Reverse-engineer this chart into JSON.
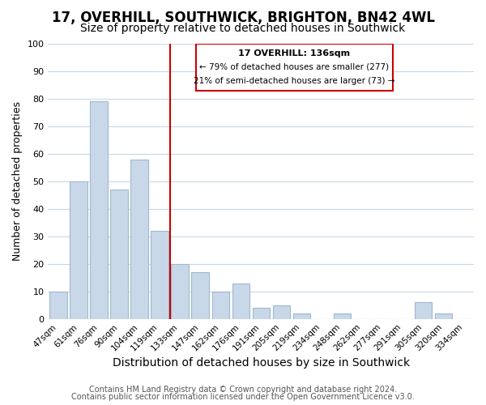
{
  "title": "17, OVERHILL, SOUTHWICK, BRIGHTON, BN42 4WL",
  "subtitle": "Size of property relative to detached houses in Southwick",
  "xlabel": "Distribution of detached houses by size in Southwick",
  "ylabel": "Number of detached properties",
  "categories": [
    "47sqm",
    "61sqm",
    "76sqm",
    "90sqm",
    "104sqm",
    "119sqm",
    "133sqm",
    "147sqm",
    "162sqm",
    "176sqm",
    "191sqm",
    "205sqm",
    "219sqm",
    "234sqm",
    "248sqm",
    "262sqm",
    "277sqm",
    "291sqm",
    "305sqm",
    "320sqm",
    "334sqm"
  ],
  "values": [
    10,
    50,
    79,
    47,
    58,
    32,
    20,
    17,
    10,
    13,
    4,
    5,
    2,
    0,
    2,
    0,
    0,
    0,
    6,
    2,
    0
  ],
  "bar_color": "#c8d8e8",
  "bar_edge_color": "#a0b8d0",
  "vline_color": "#cc0000",
  "vline_x_index": 6,
  "annotation_text_line1": "17 OVERHILL: 136sqm",
  "annotation_text_line2": "← 79% of detached houses are smaller (277)",
  "annotation_text_line3": "21% of semi-detached houses are larger (73) →",
  "annotation_box_color": "#cc0000",
  "annotation_fill": "#ffffff",
  "ylim": [
    0,
    100
  ],
  "yticks": [
    0,
    10,
    20,
    30,
    40,
    50,
    60,
    70,
    80,
    90,
    100
  ],
  "grid_color": "#c8d8e8",
  "background_color": "#ffffff",
  "footer_line1": "Contains HM Land Registry data © Crown copyright and database right 2024.",
  "footer_line2": "Contains public sector information licensed under the Open Government Licence v3.0.",
  "title_fontsize": 12,
  "subtitle_fontsize": 10,
  "xlabel_fontsize": 10,
  "ylabel_fontsize": 9,
  "footer_fontsize": 7
}
